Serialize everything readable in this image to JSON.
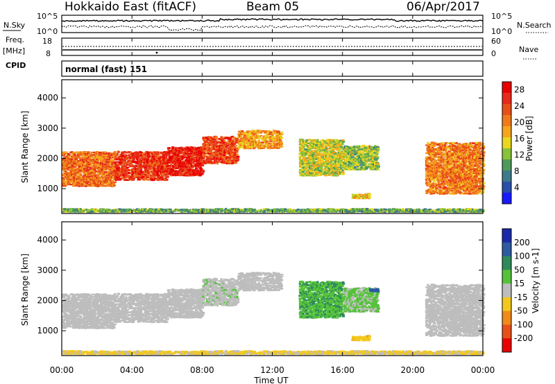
{
  "header": {
    "station": "Hokkaido East (fitACF)",
    "beam": "Beam 05",
    "date": "06/Apr/2017"
  },
  "noise_panel": {
    "left_label": "N.Sky",
    "right_label": "N.Search",
    "ticks_left": [
      "10^5",
      "10^0"
    ],
    "ticks_right": [
      "10^5",
      "10^0"
    ]
  },
  "freq_panel": {
    "left_label_1": "Freq.",
    "left_label_2": "[MHz]",
    "left_label_3": "CPID",
    "right_label": "Nave",
    "ticks_left": [
      "18",
      "8"
    ],
    "ticks_right": [
      "60",
      "0"
    ]
  },
  "cpid_text": "normal (fast) 151",
  "power_panel": {
    "ylabel": "Slant Range [km]",
    "yticks": [
      "1000",
      "2000",
      "3000",
      "4000"
    ],
    "colorbar_label": "Power [dB]",
    "colorbar_ticks": [
      "4",
      "8",
      "12",
      "16",
      "20",
      "24",
      "28"
    ],
    "colors": [
      "#1a1aff",
      "#2a4fa8",
      "#3d7a8a",
      "#4f9a5a",
      "#88c23a",
      "#e8d71e",
      "#f5a41e",
      "#f07a1a",
      "#e8501a",
      "#e82a1a",
      "#e80000"
    ]
  },
  "velocity_panel": {
    "ylabel": "Slant Range [km]",
    "yticks": [
      "1000",
      "2000",
      "3000",
      "4000"
    ],
    "colorbar_label": "Velocity [m s-1]",
    "colorbar_ticks": [
      "200",
      "100",
      "50",
      "15",
      "-15",
      "-50",
      "-100",
      "-200"
    ],
    "colors": [
      "#1a2aa8",
      "#2d5aa0",
      "#2f8a5a",
      "#55c23a",
      "#bdbdbd",
      "#f2c81e",
      "#f08a1a",
      "#e8501a",
      "#e80000"
    ]
  },
  "xaxis": {
    "label": "Time UT",
    "ticks": [
      "00:00",
      "04:00",
      "08:00",
      "12:00",
      "16:00",
      "20:00",
      "00:00"
    ]
  },
  "chart_data": {
    "type": "heatmap",
    "title": "Hokkaido East (fitACF) Beam 05 06/Apr/2017",
    "xlabel": "Time UT",
    "ylabel": "Slant Range [km]",
    "xlim_hours": [
      0,
      24
    ],
    "ylim_km": [
      180,
      4600
    ],
    "power_scale_db": [
      0,
      30
    ],
    "velocity_scale_ms": [
      -250,
      250
    ],
    "echo_regions": [
      {
        "t": [
          0.0,
          3.0
        ],
        "r": [
          1050,
          2200
        ],
        "power_db": 22,
        "velocity": 0
      },
      {
        "t": [
          3.0,
          6.0
        ],
        "r": [
          1250,
          2200
        ],
        "power_db": 26,
        "velocity": 0
      },
      {
        "t": [
          6.0,
          8.0
        ],
        "r": [
          1400,
          2350
        ],
        "power_db": 28,
        "velocity": 0
      },
      {
        "t": [
          8.0,
          10.0
        ],
        "r": [
          1800,
          2700
        ],
        "power_db": 25,
        "velocity": 5
      },
      {
        "t": [
          10.0,
          12.5
        ],
        "r": [
          2300,
          2900
        ],
        "power_db": 19,
        "velocity": 0
      },
      {
        "t": [
          13.5,
          16.0
        ],
        "r": [
          1400,
          2600
        ],
        "power_db": 14,
        "velocity": 45
      },
      {
        "t": [
          16.0,
          18.0
        ],
        "r": [
          1600,
          2400
        ],
        "power_db": 12,
        "velocity": 20
      },
      {
        "t": [
          17.5,
          18.0
        ],
        "r": [
          2270,
          2360
        ],
        "power_db": 10,
        "velocity": 150
      },
      {
        "t": [
          16.5,
          17.5
        ],
        "r": [
          650,
          800
        ],
        "power_db": 16,
        "velocity": -40
      },
      {
        "t": [
          20.7,
          24.0
        ],
        "r": [
          800,
          2500
        ],
        "power_db": 21,
        "velocity": 0
      },
      {
        "t": [
          0.0,
          24.0
        ],
        "r": [
          200,
          300
        ],
        "power_db": 10,
        "velocity": -20
      }
    ]
  }
}
